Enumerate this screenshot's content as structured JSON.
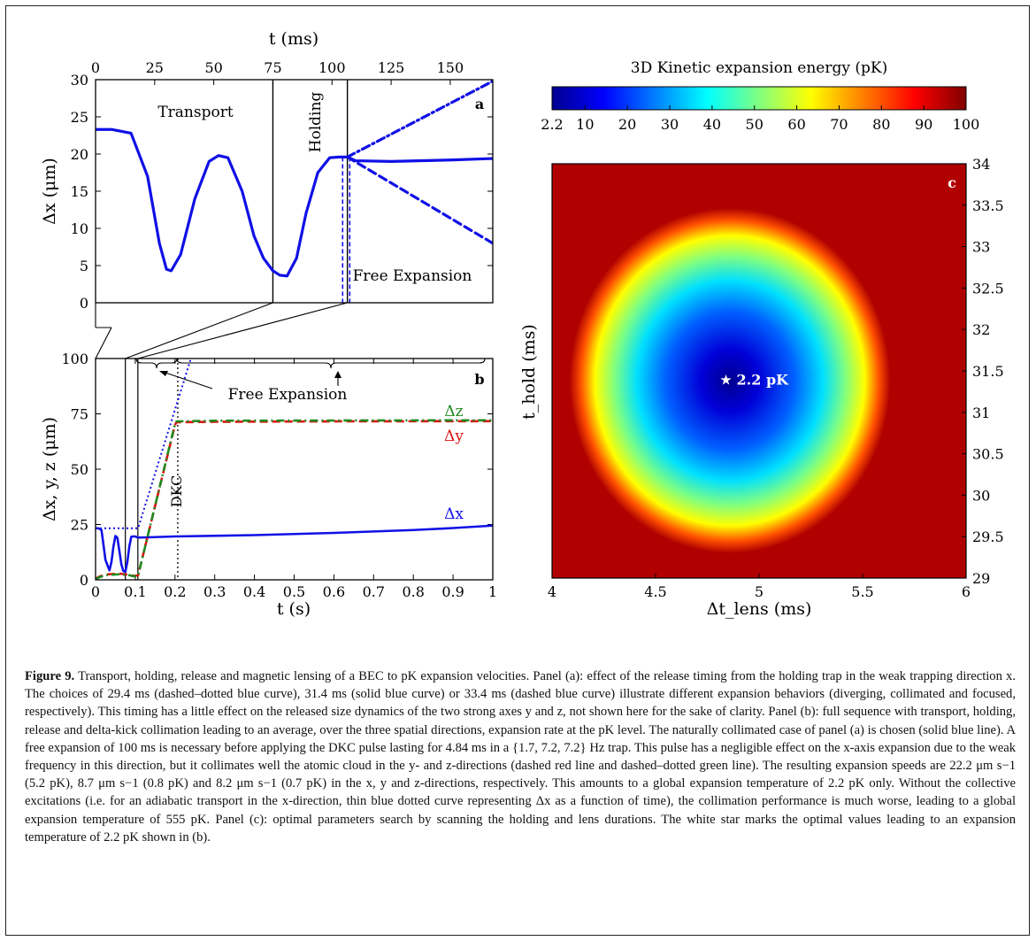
{
  "chart_data": [
    {
      "panel": "a",
      "type": "line",
      "xlabel_top": "t (ms)",
      "ylabel": "Δx (μm)",
      "xlim": [
        0,
        168
      ],
      "ylim": [
        0,
        30
      ],
      "x_ticks": [
        "0",
        "25",
        "50",
        "75",
        "100",
        "125",
        "150"
      ],
      "y_ticks": [
        "0",
        "5",
        "10",
        "15",
        "20",
        "25",
        "30"
      ],
      "annotations": [
        "Transport",
        "Holding",
        "Free Expansion"
      ],
      "phase_boundaries_ms": [
        75,
        106.5
      ],
      "series": [
        {
          "style": "solid",
          "x": [
            0,
            7,
            15,
            22,
            27,
            30,
            32,
            36,
            42,
            48,
            52,
            56,
            62,
            67,
            71,
            75,
            78,
            81,
            85,
            89,
            94,
            99,
            103,
            106.5
          ],
          "y": [
            23.3,
            23.3,
            22.8,
            17.0,
            8.0,
            4.5,
            4.3,
            6.5,
            14.0,
            19.0,
            19.8,
            19.5,
            15.0,
            9.0,
            6.0,
            4.3,
            3.7,
            3.6,
            6.0,
            12.0,
            17.5,
            19.5,
            19.6,
            19.6
          ]
        },
        {
          "style": "solid",
          "x": [
            106.5,
            110,
            125,
            150,
            168
          ],
          "y": [
            19.6,
            19.1,
            19.0,
            19.2,
            19.4
          ]
        },
        {
          "style": "dashdot",
          "x": [
            106.5,
            168
          ],
          "y": [
            19.6,
            29.8
          ]
        },
        {
          "style": "dashed",
          "x": [
            106.5,
            168
          ],
          "y": [
            19.6,
            8.0
          ]
        }
      ],
      "release_markers_ms": [
        104.5,
        107.5
      ]
    },
    {
      "panel": "b",
      "type": "line",
      "xlabel": "t (s)",
      "ylabel": "Δx, y, z (μm)",
      "xlim": [
        0,
        1
      ],
      "ylim": [
        0,
        100
      ],
      "x_ticks": [
        "0",
        "0.1",
        "0.2",
        "0.3",
        "0.4",
        "0.5",
        "0.6",
        "0.7",
        "0.8",
        "0.9",
        "1"
      ],
      "y_ticks": [
        "0",
        "25",
        "50",
        "75",
        "100"
      ],
      "annotations": [
        "Free Expansion",
        "DKC"
      ],
      "series": [
        {
          "name": "Δx",
          "style": "solid",
          "x": [
            0,
            0.007,
            0.015,
            0.025,
            0.035,
            0.04,
            0.045,
            0.05,
            0.055,
            0.06,
            0.065,
            0.07,
            0.075,
            0.08,
            0.085,
            0.09,
            0.095,
            0.1,
            0.105,
            0.11,
            0.13,
            0.2,
            0.4,
            0.6,
            0.8,
            0.9,
            1.0
          ],
          "y": [
            23.3,
            23.3,
            22.5,
            9,
            4.3,
            8,
            15,
            19.8,
            19,
            13,
            7,
            4,
            3.6,
            8,
            15,
            19.5,
            19.6,
            19.6,
            19.2,
            19.1,
            19.2,
            19.6,
            20.2,
            21.2,
            22.5,
            23.4,
            24.5
          ]
        },
        {
          "name": "Δy",
          "style": "dashed",
          "x": [
            0,
            0.01,
            0.03,
            0.06,
            0.085,
            0.095,
            0.107,
            0.2,
            0.204,
            0.3,
            0.6,
            1.0
          ],
          "y": [
            0.5,
            1.5,
            2.5,
            2.8,
            2.3,
            1.8,
            2.0,
            70,
            71.2,
            71.4,
            71.6,
            71.7
          ]
        },
        {
          "name": "Δz",
          "style": "dashdot",
          "x": [
            0,
            0.01,
            0.03,
            0.06,
            0.085,
            0.095,
            0.107,
            0.2,
            0.204,
            0.3,
            0.6,
            1.0
          ],
          "y": [
            0.3,
            1.2,
            2.2,
            2.5,
            2.1,
            1.6,
            1.8,
            70.5,
            71.6,
            71.9,
            72.0,
            72.1
          ]
        },
        {
          "style": "dotted",
          "x": [
            0,
            0.09,
            0.107,
            0.24
          ],
          "y": [
            23.3,
            23.3,
            23.3,
            100
          ]
        }
      ],
      "dkc_time_s": 0.207
    },
    {
      "panel": "c",
      "type": "heatmap",
      "xlabel": "Δt_lens (ms)",
      "ylabel": "t_hold (ms)",
      "colorbar_label": "3D Kinetic expansion energy (pK)",
      "xlim": [
        4,
        6
      ],
      "ylim": [
        29,
        34
      ],
      "x_ticks": [
        "4",
        "4.5",
        "5",
        "5.5",
        "6"
      ],
      "y_ticks": [
        "29",
        "29.5",
        "30",
        "30.5",
        "31",
        "31.5",
        "32",
        "32.5",
        "33",
        "33.5",
        "34"
      ],
      "colorbar_ticks": [
        "2.2",
        "10",
        "20",
        "30",
        "40",
        "50",
        "60",
        "70",
        "80",
        "90",
        "100"
      ],
      "colorbar_range": [
        2.2,
        100
      ],
      "optimum": {
        "x": 4.84,
        "y": 31.4,
        "value": 2.2,
        "label": "2.2 pK"
      }
    }
  ],
  "panel_labels": {
    "a": "a",
    "b": "b",
    "c": "c"
  },
  "caption": {
    "title": "Figure 9.",
    "text": " Transport, holding, release and magnetic lensing of a BEC to pK expansion velocities. Panel (a): effect of the release timing from the holding trap in the weak trapping direction x. The choices of 29.4 ms (dashed–dotted blue curve), 31.4 ms (solid blue curve) or 33.4 ms (dashed blue curve) illustrate different expansion behaviors (diverging, collimated and focused, respectively). This timing has a little effect on the released size dynamics of the two strong axes y and z, not shown here for the sake of clarity. Panel (b): full sequence with transport, holding, release and delta-kick collimation leading to an average, over the three spatial directions, expansion rate at the pK level. The naturally collimated case of panel (a) is chosen (solid blue line). A free expansion of 100 ms is necessary before applying the DKC pulse lasting for 4.84 ms in a {1.7, 7.2, 7.2} Hz trap. This pulse has a negligible effect on the x-axis expansion due to the weak frequency in this direction, but it collimates well the atomic cloud in the y- and z-directions (dashed red line and dashed–dotted green line). The resulting expansion speeds are 22.2 μm s−1 (5.2 pK), 8.7 μm s−1 (0.8 pK) and 8.2 μm s−1 (0.7 pK) in the x, y and z-directions, respectively. This amounts to a global expansion temperature of 2.2 pK only. Without the collective excitations (i.e. for an adiabatic transport in the x-direction, thin blue dotted curve representing Δx as a function of time), the collimation performance is much worse, leading to a global expansion temperature of 555 pK. Panel (c): optimal parameters search by scanning the holding and lens durations. The white star marks the optimal values leading to an expansion temperature of 2.2 pK shown in (b)."
  },
  "colors": {
    "blue": "#1010e6",
    "red": "#e01010",
    "green": "#1f8a1f",
    "background": "#ffffff"
  }
}
